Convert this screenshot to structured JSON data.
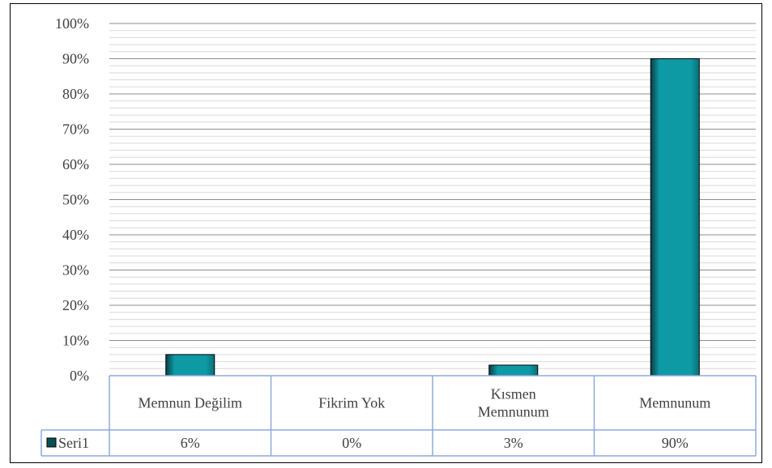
{
  "chart_data": {
    "type": "bar",
    "categories": [
      "Memnun Değilim",
      "Fikrim Yok",
      "Kısmen Memnunum",
      "Memnunum"
    ],
    "category_lines": [
      [
        "Memnun Değilim"
      ],
      [
        "Fikrim Yok"
      ],
      [
        "Kısmen",
        "Memnunum"
      ],
      [
        "Memnunum"
      ]
    ],
    "series": [
      {
        "name": "Seri1",
        "values": [
          6,
          0,
          3,
          90
        ],
        "labels": [
          "6%",
          "0%",
          "3%",
          "90%"
        ]
      }
    ],
    "ylim": [
      0,
      100
    ],
    "yticks": [
      "0%",
      "10%",
      "20%",
      "30%",
      "40%",
      "50%",
      "60%",
      "70%",
      "80%",
      "90%",
      "100%"
    ],
    "grid": true,
    "legend": "data-table",
    "colors": {
      "bar": "#0e9aa5",
      "bar_dark": "#0a4f55",
      "table_border": "#8eaadb",
      "grid_major": "#8c8c8c",
      "grid_minor": "#d9d9d9"
    }
  }
}
